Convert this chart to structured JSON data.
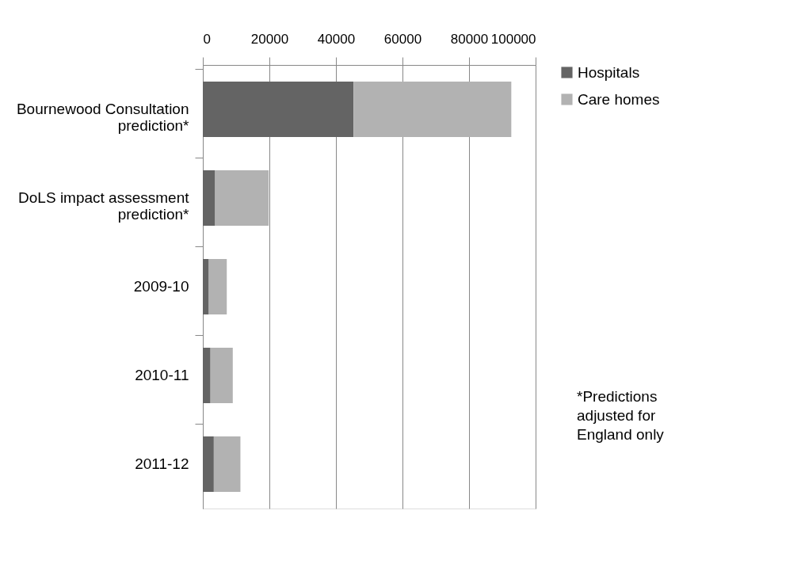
{
  "chart_data": {
    "type": "bar",
    "orientation": "horizontal",
    "stacked": true,
    "categories": [
      "Bournewood Consultation prediction*",
      "DoLS impact assessment prediction*",
      "2009-10",
      "2010-11",
      "2011-12"
    ],
    "series": [
      {
        "name": "Hospitals",
        "color": "#646464",
        "values": [
          45300,
          3700,
          1800,
          2300,
          3300
        ]
      },
      {
        "name": "Care homes",
        "color": "#b2b2b2",
        "values": [
          47400,
          16100,
          5400,
          6700,
          8000
        ]
      }
    ],
    "xlim": [
      0,
      100000
    ],
    "xticks": [
      0,
      20000,
      40000,
      60000,
      80000,
      100000
    ],
    "grid": "x",
    "legend": "right",
    "annotations": [
      "*Predictions adjusted for England only"
    ]
  }
}
